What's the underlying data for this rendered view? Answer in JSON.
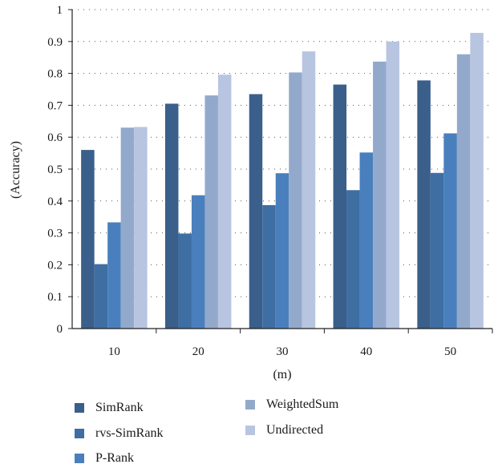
{
  "chart_data": {
    "type": "bar",
    "title": "",
    "xlabel": "(m)",
    "ylabel": "(Accuracy)",
    "categories": [
      "10",
      "20",
      "30",
      "40",
      "50"
    ],
    "ylim": [
      0,
      1
    ],
    "yticks": [
      "0",
      "0.1",
      "0.2",
      "0.3",
      "0.4",
      "0.5",
      "0.6",
      "0.7",
      "0.8",
      "0.9",
      "1"
    ],
    "grid": "dotted horizontal",
    "legend_position": "bottom",
    "series": [
      {
        "name": "SimRank",
        "color": "#3a5f8a",
        "values": [
          0.56,
          0.705,
          0.735,
          0.765,
          0.778
        ]
      },
      {
        "name": "rvs-SimRank",
        "color": "#3f6ea3",
        "values": [
          0.202,
          0.298,
          0.387,
          0.434,
          0.488
        ]
      },
      {
        "name": "P-Rank",
        "color": "#4a7fbd",
        "values": [
          0.333,
          0.418,
          0.487,
          0.552,
          0.612
        ]
      },
      {
        "name": "WeightedSum",
        "color": "#93a9cc",
        "values": [
          0.63,
          0.731,
          0.803,
          0.837,
          0.86
        ]
      },
      {
        "name": "Undirected",
        "color": "#b8c5e0",
        "values": [
          0.632,
          0.796,
          0.869,
          0.9,
          0.927
        ]
      }
    ]
  }
}
